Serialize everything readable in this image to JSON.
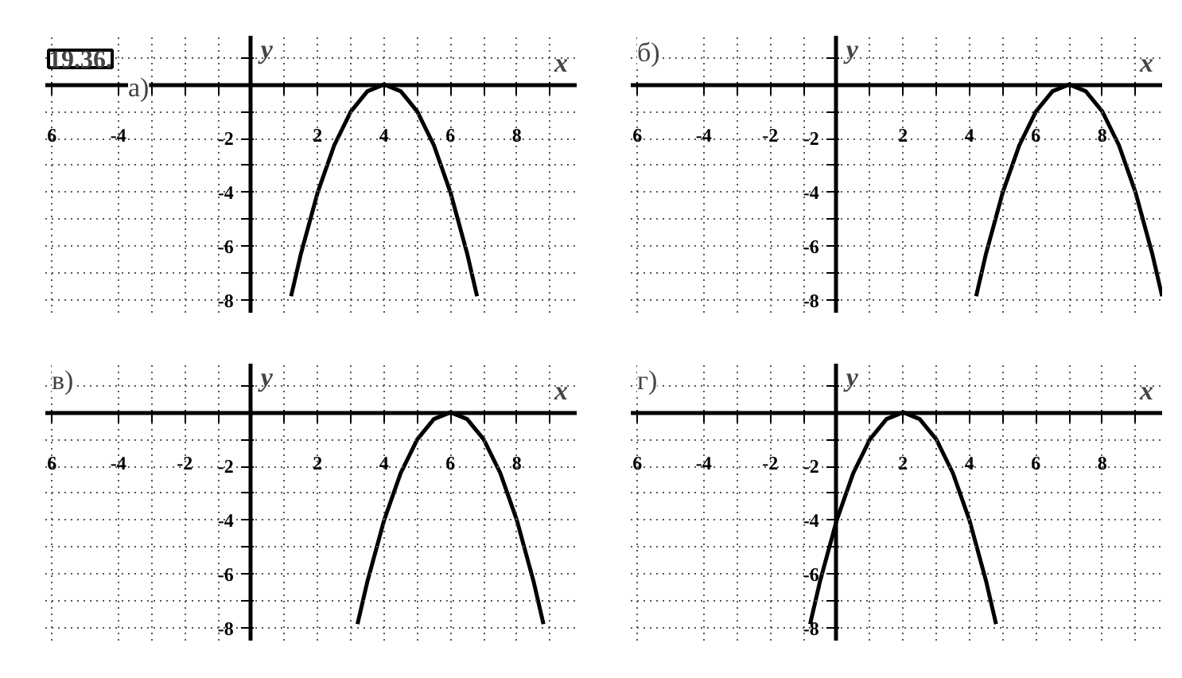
{
  "chart_data": [
    {
      "type": "line",
      "title": "а)",
      "annotations": [
        "19.36."
      ],
      "xlabel": "x",
      "ylabel": "y",
      "grid": true,
      "marker": "none",
      "line_style": "solid",
      "xlim": [
        -6.2,
        9.8
      ],
      "ylim": [
        -8,
        1.8
      ],
      "xticks": [
        {
          "value": -6,
          "label": "6"
        },
        -4,
        {
          "value": -3,
          "label": null
        },
        {
          "value": -2,
          "label": null
        },
        {
          "value": -1,
          "label": null
        },
        {
          "value": 0,
          "label": null
        },
        {
          "value": 1,
          "label": null
        },
        2,
        {
          "value": 3,
          "label": null
        },
        4,
        {
          "value": 5,
          "label": null
        },
        6,
        {
          "value": 7,
          "label": null
        },
        8,
        {
          "value": 9,
          "label": null
        }
      ],
      "yticks": [
        -8,
        {
          "value": -7,
          "label": null
        },
        -6,
        {
          "value": -5,
          "label": null
        },
        -4,
        {
          "value": -3,
          "label": null
        },
        -2,
        {
          "value": -1,
          "label": null
        },
        {
          "value": 0,
          "label": null
        },
        {
          "value": 1,
          "label": null
        }
      ],
      "series": [
        {
          "color": "#000000",
          "x": [
            1.2,
            1.5,
            2,
            2.5,
            3,
            3.5,
            4,
            4.5,
            5,
            5.5,
            6,
            6.5,
            6.8
          ],
          "values": [
            -7.84,
            -6.25,
            -4,
            -2.25,
            -1,
            -0.25,
            0,
            -0.25,
            -1,
            -2.25,
            -4,
            -6.25,
            -7.84
          ]
        }
      ]
    },
    {
      "type": "line",
      "title": "б)",
      "xlabel": "x",
      "ylabel": "y",
      "grid": true,
      "marker": "none",
      "line_style": "solid",
      "xlim": [
        -6.2,
        9.8
      ],
      "ylim": [
        -8,
        1.8
      ],
      "xticks": [
        {
          "value": -6,
          "label": "6"
        },
        -4,
        {
          "value": -3,
          "label": null
        },
        -2,
        {
          "value": -1,
          "label": null
        },
        {
          "value": 0,
          "label": null
        },
        {
          "value": 1,
          "label": null
        },
        2,
        {
          "value": 3,
          "label": null
        },
        4,
        {
          "value": 5,
          "label": null
        },
        6,
        {
          "value": 7,
          "label": null
        },
        8,
        {
          "value": 9,
          "label": null
        }
      ],
      "yticks": [
        -8,
        {
          "value": -7,
          "label": null
        },
        -6,
        {
          "value": -5,
          "label": null
        },
        -4,
        {
          "value": -3,
          "label": null
        },
        -2,
        {
          "value": -1,
          "label": null
        },
        {
          "value": 0,
          "label": null
        },
        {
          "value": 1,
          "label": null
        }
      ],
      "series": [
        {
          "color": "#000000",
          "x": [
            4.2,
            4.5,
            5,
            5.5,
            6,
            6.5,
            7,
            7.5,
            8,
            8.5,
            9,
            9.5,
            9.8
          ],
          "values": [
            -7.84,
            -6.25,
            -4,
            -2.25,
            -1,
            -0.25,
            0,
            -0.25,
            -1,
            -2.25,
            -4,
            -6.25,
            -7.84
          ]
        }
      ]
    },
    {
      "type": "line",
      "title": "в)",
      "xlabel": "x",
      "ylabel": "y",
      "grid": true,
      "marker": "none",
      "line_style": "solid",
      "xlim": [
        -6.2,
        9.8
      ],
      "ylim": [
        -8,
        1.8
      ],
      "xticks": [
        {
          "value": -6,
          "label": "6"
        },
        -4,
        {
          "value": -3,
          "label": null
        },
        -2,
        {
          "value": -1,
          "label": null
        },
        {
          "value": 0,
          "label": null
        },
        {
          "value": 1,
          "label": null
        },
        2,
        {
          "value": 3,
          "label": null
        },
        4,
        {
          "value": 5,
          "label": null
        },
        6,
        {
          "value": 7,
          "label": null
        },
        8,
        {
          "value": 9,
          "label": null
        }
      ],
      "yticks": [
        -8,
        {
          "value": -7,
          "label": null
        },
        -6,
        {
          "value": -5,
          "label": null
        },
        -4,
        {
          "value": -3,
          "label": null
        },
        -2,
        {
          "value": -1,
          "label": null
        },
        {
          "value": 0,
          "label": null
        },
        {
          "value": 1,
          "label": null
        }
      ],
      "series": [
        {
          "color": "#000000",
          "x": [
            3.2,
            3.5,
            4,
            4.5,
            5,
            5.5,
            6,
            6.5,
            7,
            7.5,
            8,
            8.5,
            8.8
          ],
          "values": [
            -7.84,
            -6.25,
            -4,
            -2.25,
            -1,
            -0.25,
            0,
            -0.25,
            -1,
            -2.25,
            -4,
            -6.25,
            -7.84
          ]
        }
      ]
    },
    {
      "type": "line",
      "title": "г)",
      "xlabel": "x",
      "ylabel": "y",
      "grid": true,
      "marker": "none",
      "line_style": "solid",
      "xlim": [
        -6.2,
        9.8
      ],
      "ylim": [
        -8,
        1.8
      ],
      "xticks": [
        {
          "value": -6,
          "label": "6"
        },
        -4,
        {
          "value": -3,
          "label": null
        },
        -2,
        {
          "value": -1,
          "label": null
        },
        {
          "value": 0,
          "label": null
        },
        {
          "value": 1,
          "label": null
        },
        2,
        {
          "value": 3,
          "label": null
        },
        4,
        {
          "value": 5,
          "label": null
        },
        6,
        {
          "value": 7,
          "label": null
        },
        8,
        {
          "value": 9,
          "label": null
        }
      ],
      "yticks": [
        -8,
        {
          "value": -7,
          "label": null
        },
        -6,
        {
          "value": -5,
          "label": null
        },
        -4,
        {
          "value": -3,
          "label": null
        },
        -2,
        {
          "value": -1,
          "label": null
        },
        {
          "value": 0,
          "label": null
        },
        {
          "value": 1,
          "label": null
        }
      ],
      "series": [
        {
          "color": "#000000",
          "x": [
            -0.8,
            -0.5,
            0,
            0.5,
            1,
            1.5,
            2,
            2.5,
            3,
            3.5,
            4,
            4.5,
            4.8
          ],
          "values": [
            -7.84,
            -6.25,
            -4,
            -2.25,
            -1,
            -0.25,
            0,
            -0.25,
            -1,
            -2.25,
            -4,
            -6.25,
            -7.84
          ]
        }
      ]
    }
  ]
}
